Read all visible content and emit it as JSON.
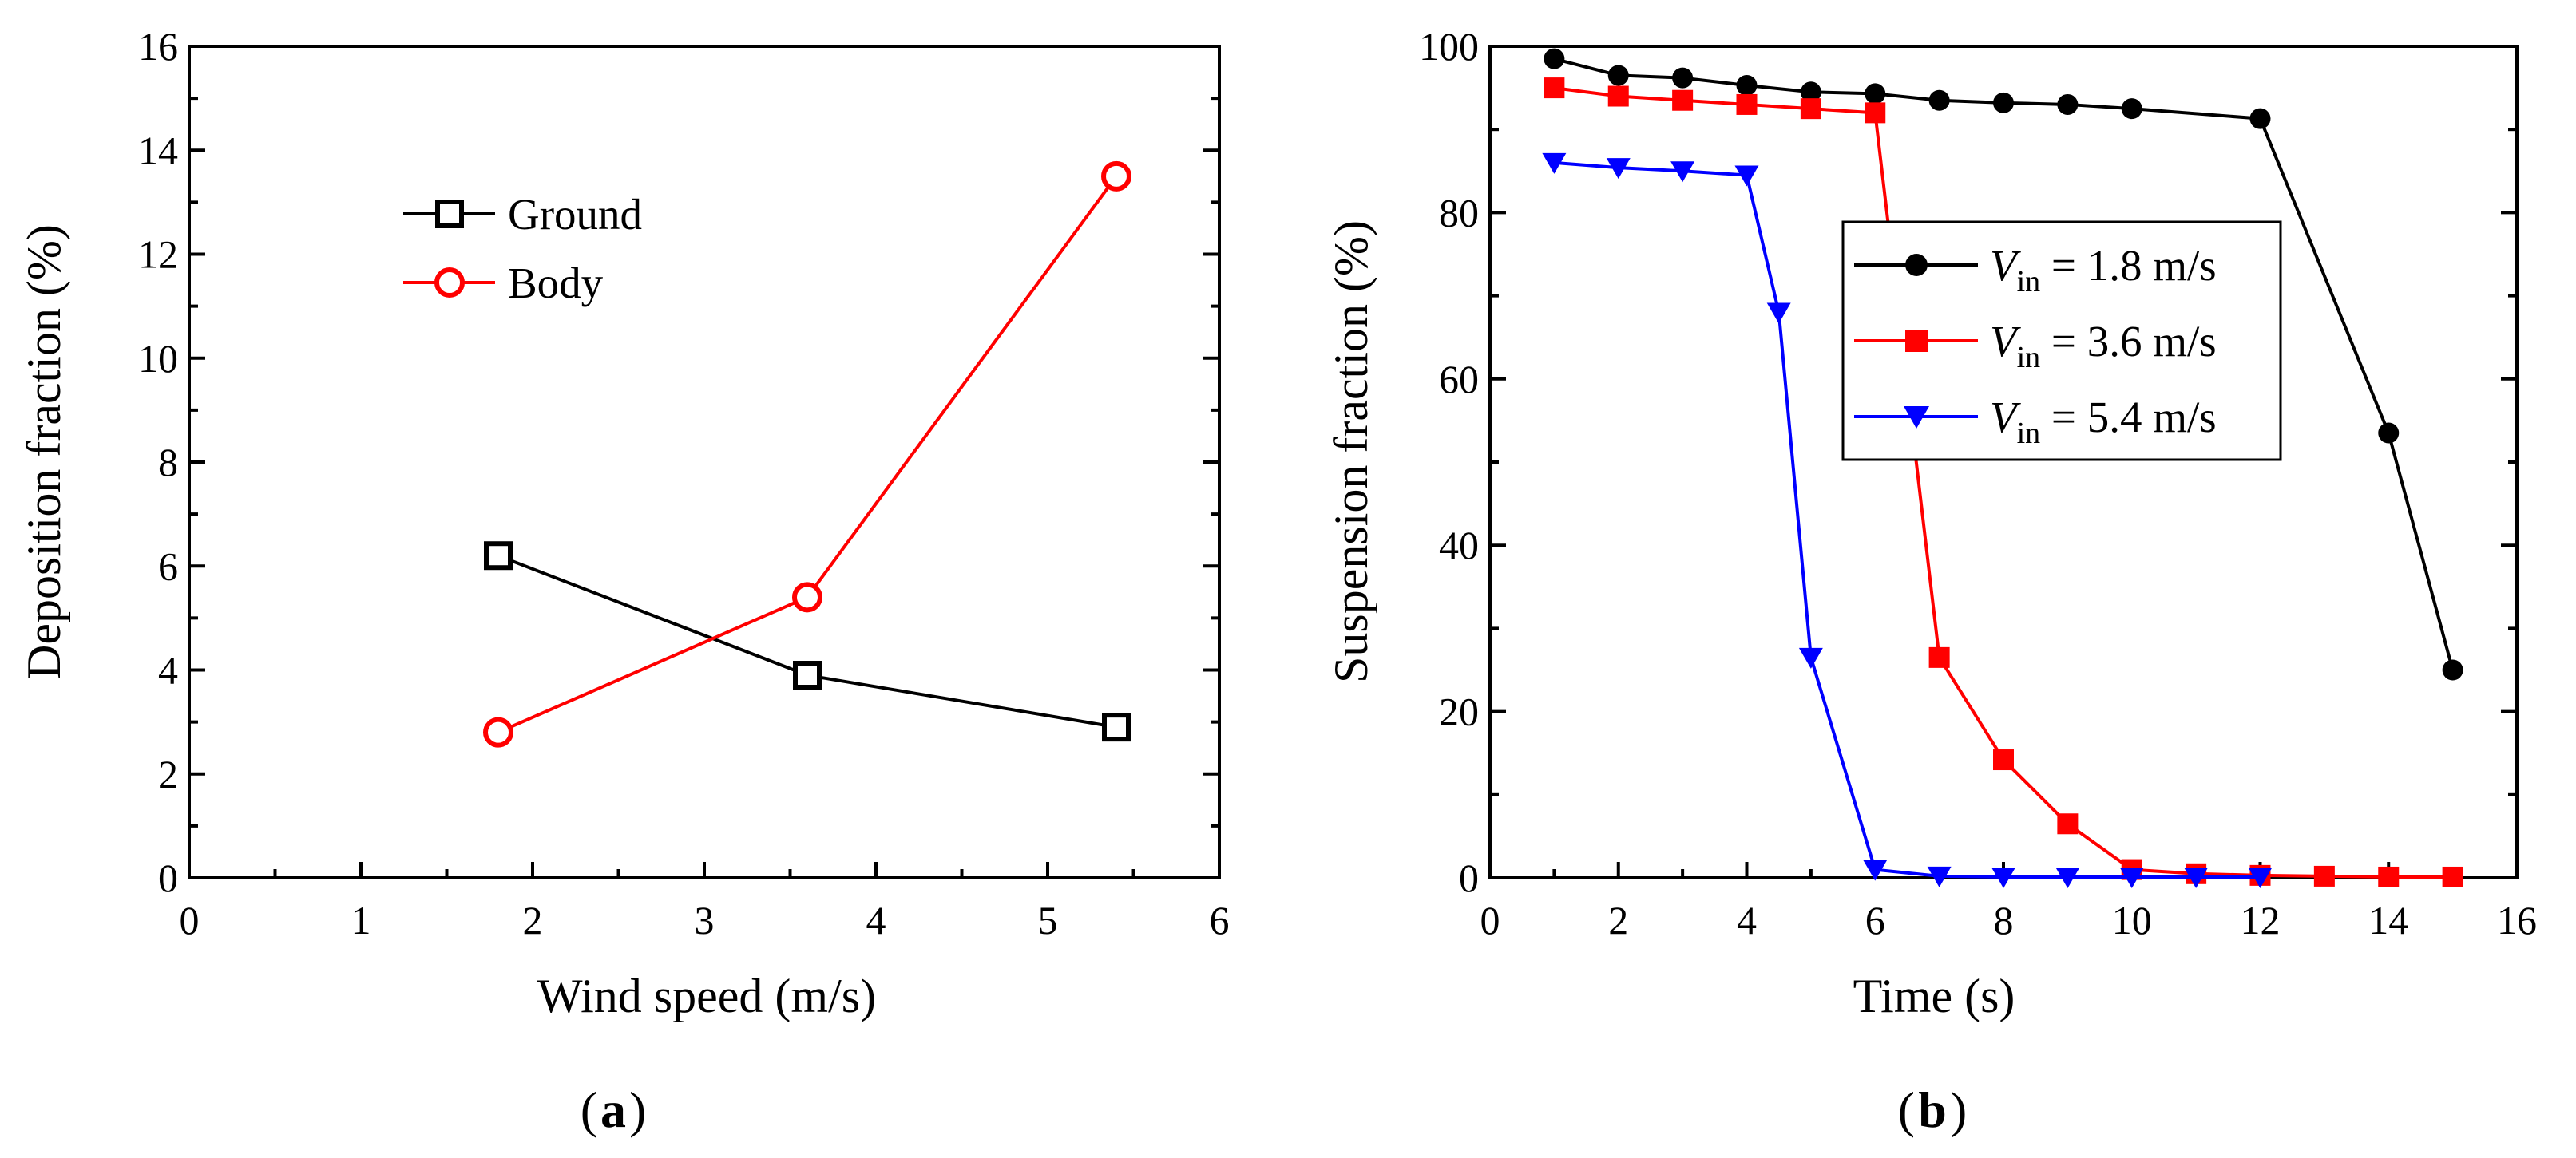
{
  "chart_data": [
    {
      "type": "line",
      "panel_label": "a",
      "xlabel": "Wind speed (m/s)",
      "ylabel": "Deposition fraction (%)",
      "xlim": [
        0,
        6
      ],
      "ylim": [
        0,
        16
      ],
      "xticks": [
        0,
        1,
        2,
        3,
        4,
        5,
        6
      ],
      "yticks": [
        0,
        2,
        4,
        6,
        8,
        10,
        12,
        14,
        16
      ],
      "grid": false,
      "legend_position": "upper-left",
      "series": [
        {
          "name": "Ground",
          "color": "#000000",
          "marker": "open-square",
          "x": [
            1.8,
            3.6,
            5.4
          ],
          "y": [
            6.2,
            3.9,
            2.9
          ]
        },
        {
          "name": "Body",
          "color": "#ff0000",
          "marker": "open-circle",
          "x": [
            1.8,
            3.6,
            5.4
          ],
          "y": [
            2.8,
            5.4,
            13.5
          ]
        }
      ]
    },
    {
      "type": "line",
      "panel_label": "b",
      "xlabel": "Time (s)",
      "ylabel": "Suspension fraction (%)",
      "xlim": [
        0,
        16
      ],
      "ylim": [
        0,
        100
      ],
      "xticks": [
        0,
        2,
        4,
        6,
        8,
        10,
        12,
        14,
        16
      ],
      "yticks": [
        0,
        20,
        40,
        60,
        80,
        100
      ],
      "grid": false,
      "legend_position": "center-right",
      "series": [
        {
          "name_var": "V",
          "name_sub": "in",
          "name_rest": " = 1.8 m/s",
          "color": "#000000",
          "marker": "filled-circle",
          "x": [
            1,
            2,
            3,
            4,
            5,
            6,
            7,
            8,
            9,
            10,
            12,
            14,
            15
          ],
          "y": [
            98.5,
            96.5,
            96.2,
            95.3,
            94.5,
            94.3,
            93.5,
            93.2,
            93.0,
            92.5,
            91.3,
            53.5,
            25.0
          ]
        },
        {
          "name_var": "V",
          "name_sub": "in",
          "name_rest": " = 3.6 m/s",
          "color": "#ff0000",
          "marker": "filled-square",
          "x": [
            1,
            2,
            3,
            4,
            5,
            6,
            7,
            8,
            9,
            10,
            11,
            12,
            13,
            14,
            15
          ],
          "y": [
            95.0,
            94.0,
            93.5,
            93.0,
            92.5,
            92.0,
            26.5,
            14.2,
            6.5,
            1.0,
            0.5,
            0.3,
            0.2,
            0.1,
            0.1
          ]
        },
        {
          "name_var": "V",
          "name_sub": "in",
          "name_rest": " = 5.4 m/s",
          "color": "#0000ff",
          "marker": "filled-triangle-down",
          "x": [
            1,
            2,
            3,
            4,
            4.5,
            5,
            6,
            7,
            8,
            9,
            10,
            11,
            12
          ],
          "y": [
            86.0,
            85.4,
            85.0,
            84.5,
            68.0,
            26.5,
            1.0,
            0.2,
            0.1,
            0.1,
            0.1,
            0.1,
            0.1
          ]
        }
      ]
    }
  ]
}
